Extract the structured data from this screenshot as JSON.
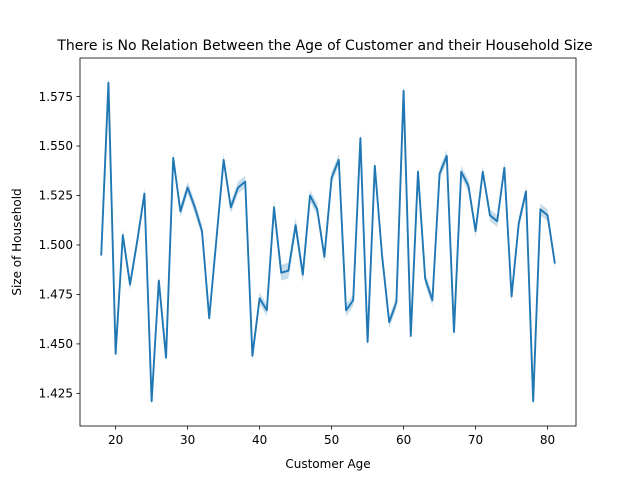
{
  "chart_data": {
    "type": "line",
    "title": "There is No Relation Between the Age of Customer and their Household Size",
    "xlabel": "Customer Age",
    "ylabel": "Size of Household",
    "xlim": [
      15.05,
      83.95
    ],
    "ylim": [
      1.4085,
      1.5945
    ],
    "xticks": [
      20,
      30,
      40,
      50,
      60,
      70,
      80
    ],
    "yticks": [
      1.425,
      1.45,
      1.475,
      1.5,
      1.525,
      1.55,
      1.575
    ],
    "ytick_labels": [
      "1.425",
      "1.450",
      "1.475",
      "1.500",
      "1.525",
      "1.550",
      "1.575"
    ],
    "grid": false,
    "line_color": "#1f77b4",
    "band_color": "#1f77b4",
    "series": [
      {
        "x": [
          18,
          19,
          20,
          21,
          22,
          23,
          24,
          25,
          26,
          27,
          28,
          29,
          30,
          31,
          32,
          33,
          34,
          35,
          36,
          37,
          38,
          39,
          40,
          41,
          42,
          43,
          44,
          45,
          46,
          47,
          48,
          49,
          50,
          51,
          52,
          53,
          54,
          55,
          56,
          57,
          58,
          59,
          60,
          61,
          62,
          63,
          64,
          65,
          66,
          67,
          68,
          69,
          70,
          71,
          72,
          73,
          74,
          75,
          76,
          77,
          78,
          79,
          80,
          81
        ],
        "values": [
          1.495,
          1.582,
          1.445,
          1.505,
          1.48,
          1.502,
          1.526,
          1.421,
          1.482,
          1.443,
          1.544,
          1.517,
          1.529,
          1.519,
          1.507,
          1.463,
          1.503,
          1.543,
          1.519,
          1.529,
          1.532,
          1.444,
          1.473,
          1.467,
          1.519,
          1.486,
          1.487,
          1.51,
          1.485,
          1.525,
          1.518,
          1.494,
          1.534,
          1.543,
          1.467,
          1.472,
          1.554,
          1.451,
          1.54,
          1.495,
          1.461,
          1.471,
          1.578,
          1.454,
          1.537,
          1.483,
          1.472,
          1.536,
          1.545,
          1.456,
          1.537,
          1.53,
          1.507,
          1.537,
          1.515,
          1.512,
          1.539,
          1.474,
          1.511,
          1.527,
          1.421,
          1.518,
          1.515,
          1.491
        ],
        "ci_low": [
          1.492,
          1.579,
          1.442,
          1.502,
          1.477,
          1.499,
          1.523,
          1.419,
          1.479,
          1.441,
          1.541,
          1.514,
          1.526,
          1.516,
          1.504,
          1.461,
          1.5,
          1.54,
          1.516,
          1.526,
          1.529,
          1.441,
          1.47,
          1.464,
          1.515,
          1.482,
          1.483,
          1.506,
          1.481,
          1.522,
          1.515,
          1.491,
          1.531,
          1.54,
          1.464,
          1.469,
          1.551,
          1.448,
          1.537,
          1.492,
          1.458,
          1.468,
          1.575,
          1.451,
          1.534,
          1.48,
          1.469,
          1.533,
          1.542,
          1.453,
          1.534,
          1.527,
          1.504,
          1.534,
          1.512,
          1.509,
          1.536,
          1.471,
          1.508,
          1.524,
          1.419,
          1.515,
          1.512,
          1.488
        ],
        "ci_high": [
          1.498,
          1.585,
          1.448,
          1.508,
          1.483,
          1.505,
          1.529,
          1.423,
          1.485,
          1.445,
          1.547,
          1.52,
          1.532,
          1.522,
          1.51,
          1.465,
          1.506,
          1.546,
          1.522,
          1.532,
          1.535,
          1.447,
          1.476,
          1.47,
          1.523,
          1.49,
          1.491,
          1.514,
          1.489,
          1.528,
          1.521,
          1.497,
          1.537,
          1.546,
          1.47,
          1.475,
          1.557,
          1.454,
          1.543,
          1.498,
          1.464,
          1.474,
          1.581,
          1.457,
          1.54,
          1.486,
          1.475,
          1.539,
          1.548,
          1.459,
          1.54,
          1.533,
          1.51,
          1.54,
          1.518,
          1.515,
          1.542,
          1.477,
          1.514,
          1.53,
          1.423,
          1.521,
          1.518,
          1.494
        ]
      }
    ]
  }
}
